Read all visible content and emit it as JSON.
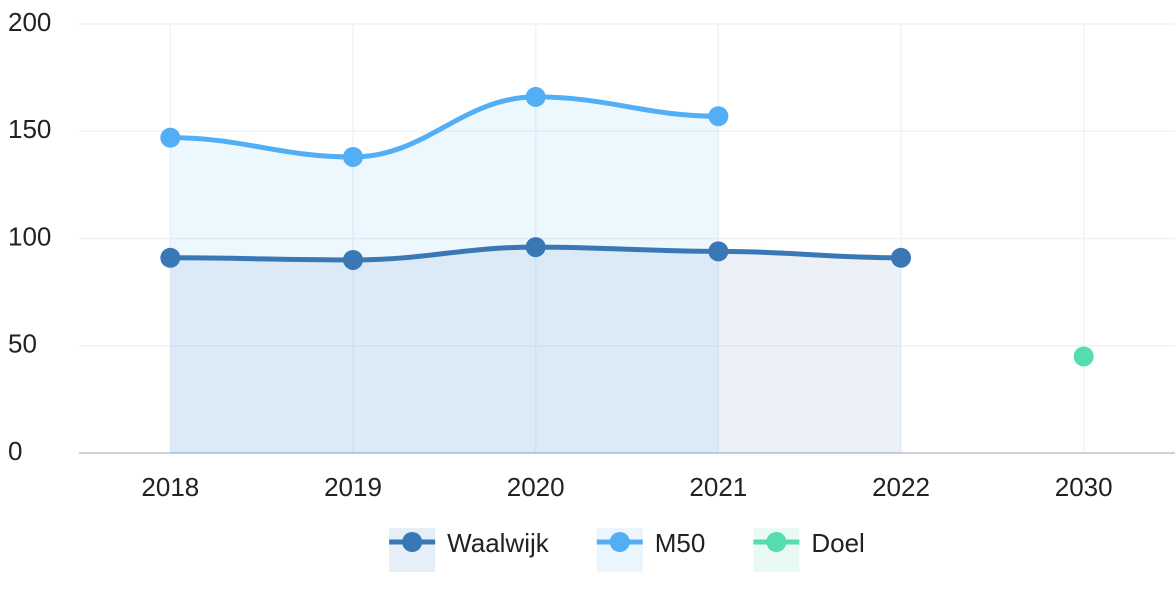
{
  "chart_data": {
    "type": "line",
    "categories": [
      "2018",
      "2019",
      "2020",
      "2021",
      "2022",
      "2030"
    ],
    "series": [
      {
        "name": "Waalwijk",
        "color": "#3a78b5",
        "area_color": "#e6eef7",
        "values": [
          91,
          90,
          96,
          94,
          91,
          null
        ]
      },
      {
        "name": "M50",
        "color": "#52aef5",
        "area_color": "#eaf5fd",
        "values": [
          147,
          138,
          166,
          157,
          null,
          null
        ]
      },
      {
        "name": "Doel",
        "color": "#55dcb0",
        "area_color": "#e8faf3",
        "values": [
          null,
          null,
          null,
          null,
          null,
          45
        ]
      }
    ],
    "ylim": [
      0,
      200
    ],
    "yticks": [
      0,
      50,
      100,
      150,
      200
    ],
    "grid": true,
    "legend": "bottom"
  }
}
